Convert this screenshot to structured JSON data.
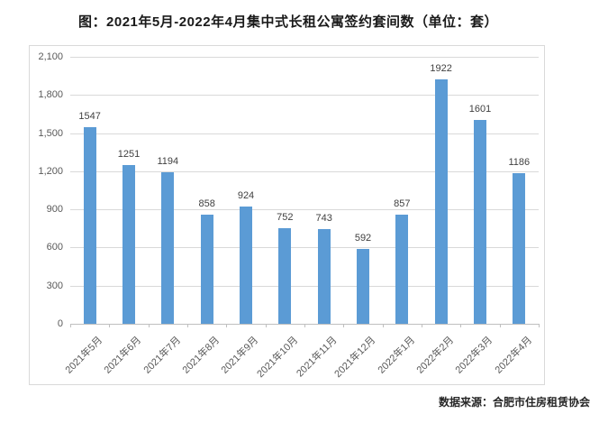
{
  "chart_data": {
    "type": "bar",
    "title": "图：2021年5月-2022年4月集中式长租公寓签约套间数（单位：套）",
    "categories": [
      "2021年5月",
      "2021年6月",
      "2021年7月",
      "2021年8月",
      "2021年9月",
      "2021年10月",
      "2021年11月",
      "2021年12月",
      "2022年1月",
      "2022年2月",
      "2022年3月",
      "2022年4月"
    ],
    "values": [
      1547,
      1251,
      1194,
      858,
      924,
      752,
      743,
      592,
      857,
      1922,
      1601,
      1186
    ],
    "data_labels": [
      "1547",
      "1251",
      "1194",
      "858",
      "924",
      "752",
      "743",
      "592",
      "857",
      "1922",
      "1601",
      "1186"
    ],
    "xlabel": "",
    "ylabel": "",
    "ylim": [
      0,
      2100
    ],
    "ytick_interval": 300,
    "ytick_labels_top_to_bottom": [
      "2,100",
      "1,800",
      "1,500",
      "1,200",
      "900",
      "600",
      "300",
      "0"
    ],
    "grid": true,
    "legend": "none",
    "bar_color": "#5B9BD5",
    "gridline_color": "#D9D9D9",
    "axis_line_color": "#BFBFBF",
    "data_label_color": "#404040",
    "tick_label_color": "#595959",
    "source": "数据来源：合肥市住房租赁协会"
  }
}
